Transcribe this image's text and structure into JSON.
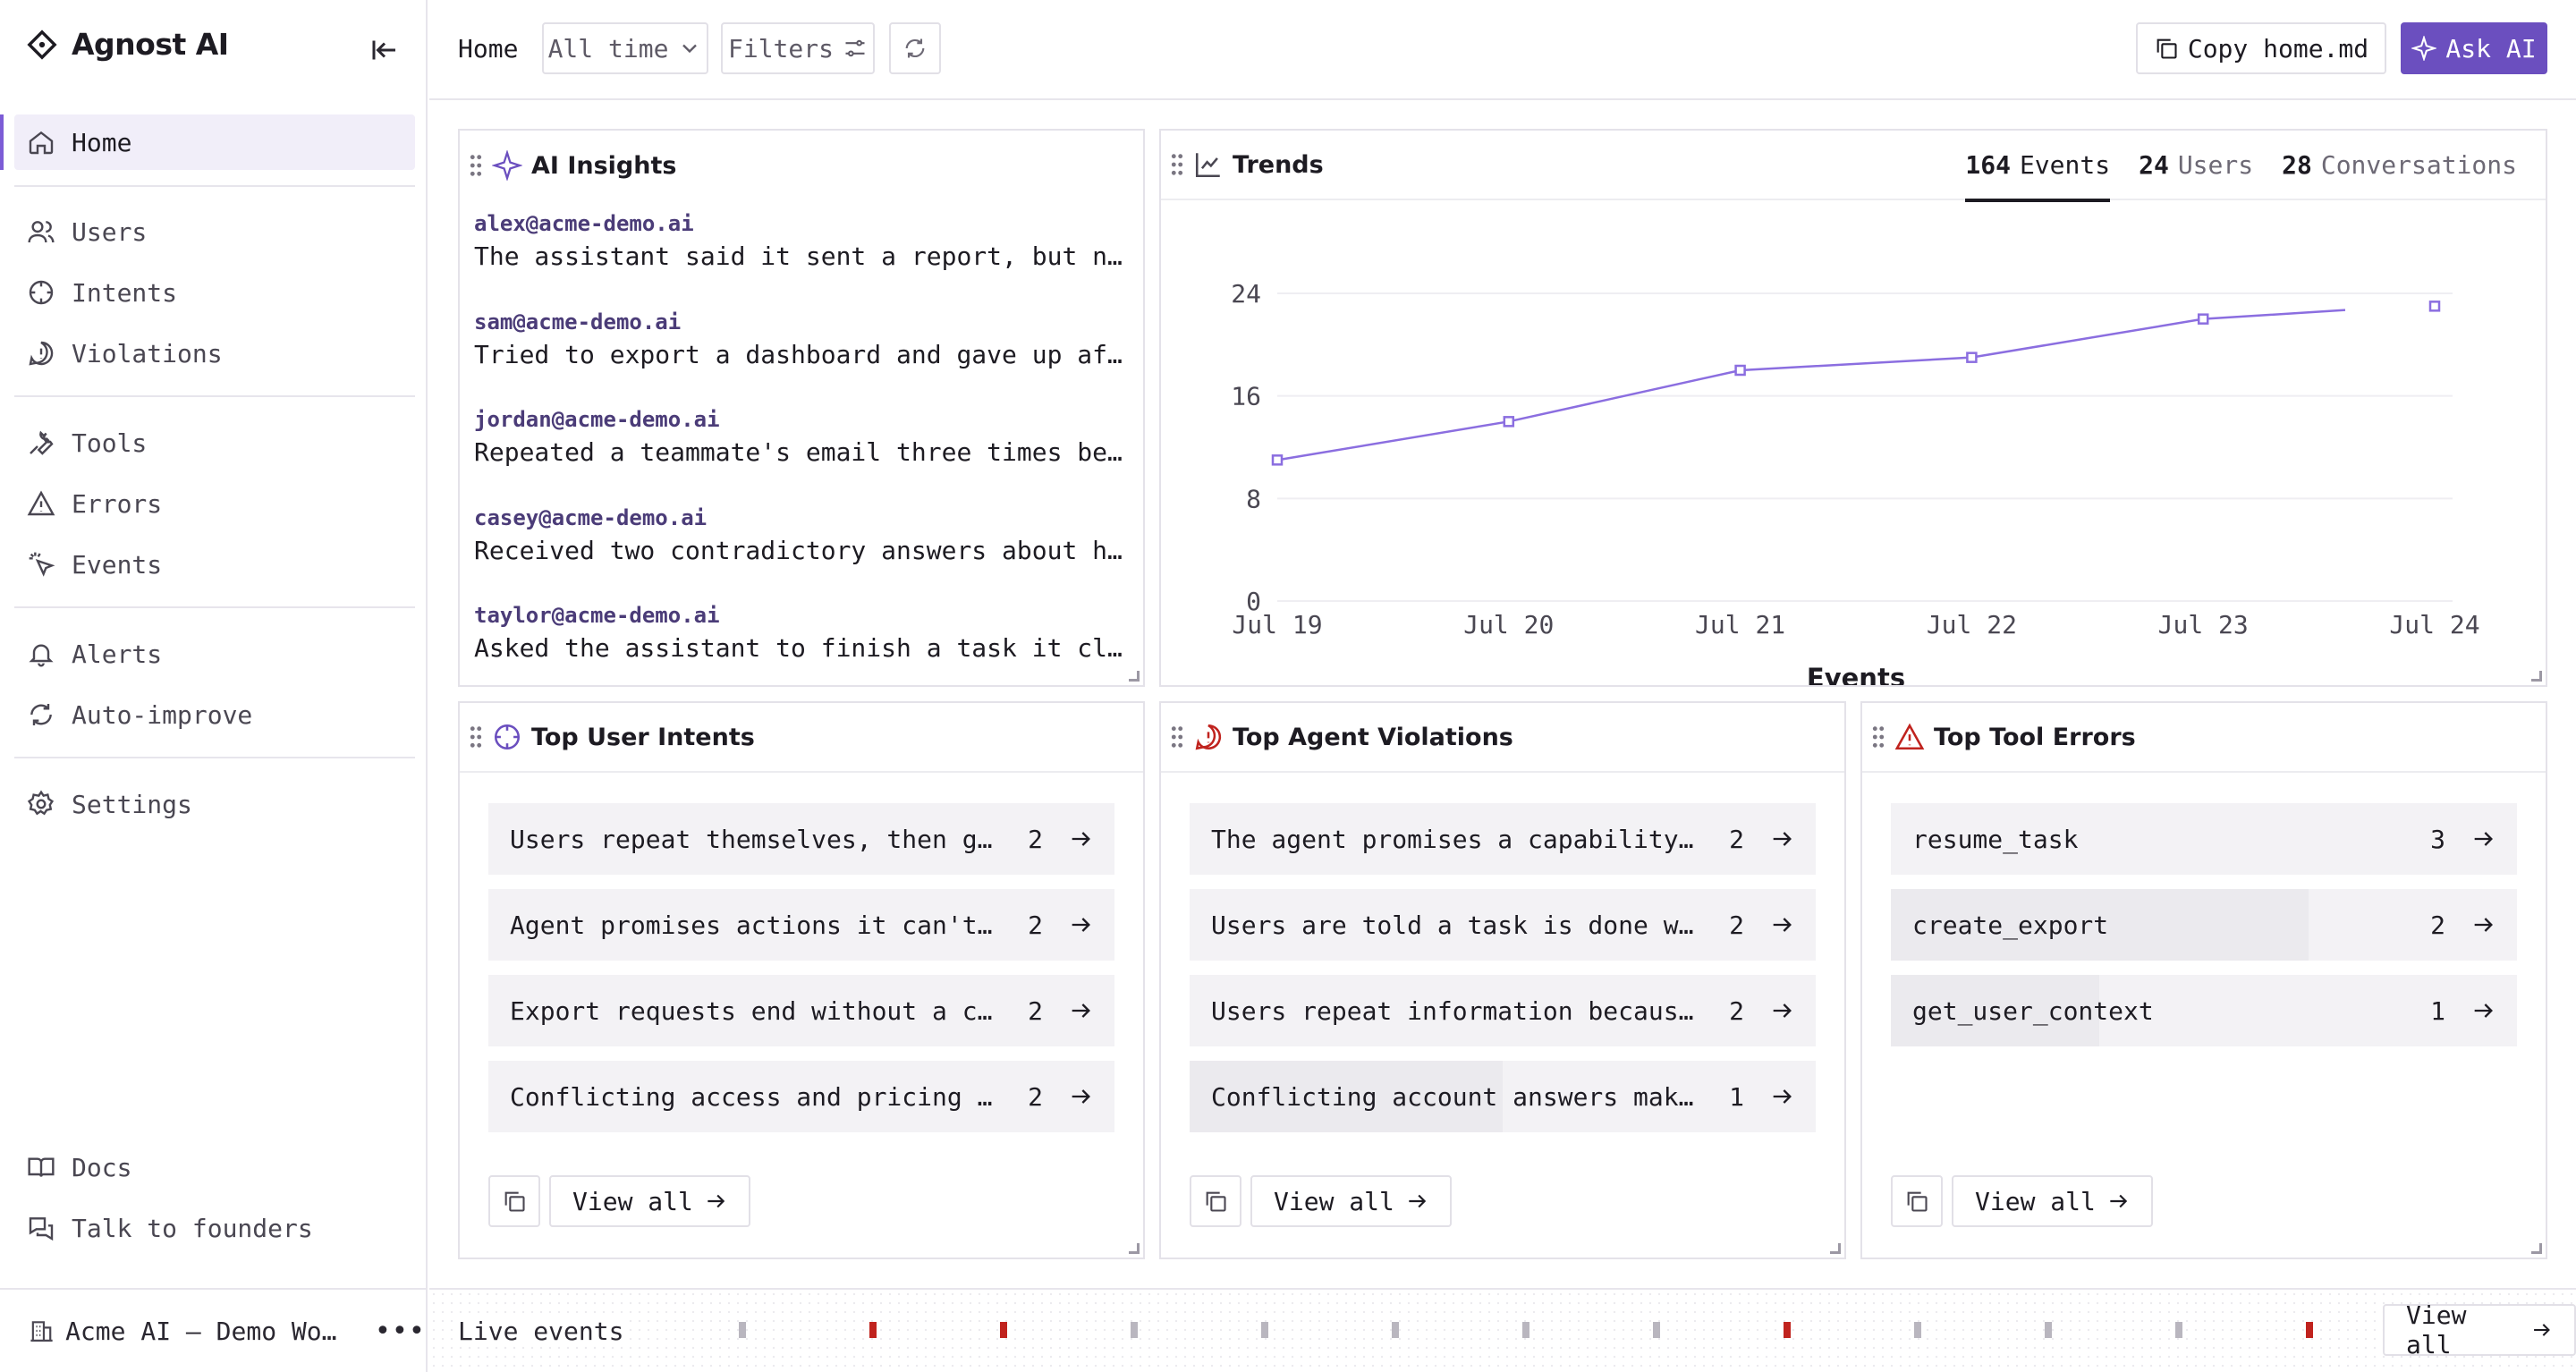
{
  "app": {
    "name": "Agnost AI"
  },
  "nav": {
    "home": "Home",
    "users": "Users",
    "intents": "Intents",
    "violations": "Violations",
    "tools": "Tools",
    "errors": "Errors",
    "events": "Events",
    "alerts": "Alerts",
    "auto_improve": "Auto-improve",
    "settings": "Settings",
    "docs": "Docs",
    "founders": "Talk to founders"
  },
  "workspace": {
    "name": "Acme AI — Demo Workspace"
  },
  "topbar": {
    "breadcrumb": "Home",
    "range": "All time",
    "filters": "Filters",
    "copy": "Copy home.md",
    "ask": "Ask AI"
  },
  "insights": {
    "title": "AI Insights",
    "items": [
      {
        "user": "alex@acme-demo.ai",
        "text": "The assistant said it sent a report, but no one on the team received it."
      },
      {
        "user": "sam@acme-demo.ai",
        "text": "Tried to export a dashboard and gave up after the process kept failing."
      },
      {
        "user": "jordan@acme-demo.ai",
        "text": "Repeated a teammate's email three times because the assistant lost track."
      },
      {
        "user": "casey@acme-demo.ai",
        "text": "Received two contradictory answers about how many seats the plan includes."
      },
      {
        "user": "taylor@acme-demo.ai",
        "text": "Asked the assistant to finish a task it claimed was already done."
      }
    ]
  },
  "trends": {
    "title": "Trends",
    "tabs": [
      {
        "num": "164",
        "label": "Events"
      },
      {
        "num": "24",
        "label": "Users"
      },
      {
        "num": "28",
        "label": "Conversations"
      }
    ]
  },
  "chart_data": {
    "type": "line",
    "x": [
      "Jul 19",
      "Jul 20",
      "Jul 21",
      "Jul 22",
      "Jul 23",
      "Jul 24"
    ],
    "series": [
      {
        "name": "Events",
        "values": [
          11,
          14,
          18,
          19,
          22,
          23
        ]
      }
    ],
    "xlabel": "Events",
    "ylabel": "",
    "yticks": [
      "0",
      "8",
      "16",
      "24"
    ],
    "ylim": [
      0,
      24
    ],
    "grid": true,
    "color": "#8b6ee0"
  },
  "intents": {
    "title": "Top User Intents",
    "rows": [
      {
        "label": "Users repeat themselves, then give up",
        "count": "2",
        "fill": 1.0
      },
      {
        "label": "Agent promises actions it can't take",
        "count": "2",
        "fill": 1.0
      },
      {
        "label": "Export requests end without a completed file",
        "count": "2",
        "fill": 1.0
      },
      {
        "label": "Conflicting access and pricing answers",
        "count": "2",
        "fill": 1.0
      }
    ],
    "view_all": "View all"
  },
  "violations": {
    "title": "Top Agent Violations",
    "rows": [
      {
        "label": "The agent promises a capability it can't deliver",
        "count": "2",
        "fill": 1.0
      },
      {
        "label": "Users are told a task is done when it isn't",
        "count": "2",
        "fill": 1.0
      },
      {
        "label": "Users repeat information because the agent forgets",
        "count": "2",
        "fill": 1.0
      },
      {
        "label": "Conflicting account answers make users churn",
        "count": "1",
        "fill": 0.5
      }
    ],
    "view_all": "View all"
  },
  "tool_errors": {
    "title": "Top Tool Errors",
    "rows": [
      {
        "label": "resume_task",
        "count": "3",
        "fill": 1.0
      },
      {
        "label": "create_export",
        "count": "2",
        "fill": 0.667
      },
      {
        "label": "get_user_context",
        "count": "1",
        "fill": 0.333
      }
    ],
    "view_all": "View all"
  },
  "live": {
    "label": "Live events",
    "view_all": "View all",
    "ticks": [
      "normal",
      "error",
      "error",
      "normal",
      "normal",
      "normal",
      "normal",
      "normal",
      "error",
      "normal",
      "normal",
      "normal",
      "error"
    ],
    "colors": {
      "normal": "#b9b6bf",
      "error": "#c0231e"
    }
  },
  "colors": {
    "accent": "#6b4fbf",
    "accent_soft": "#f1eef9",
    "line": "#8b6ee0",
    "danger": "#c0231e"
  }
}
